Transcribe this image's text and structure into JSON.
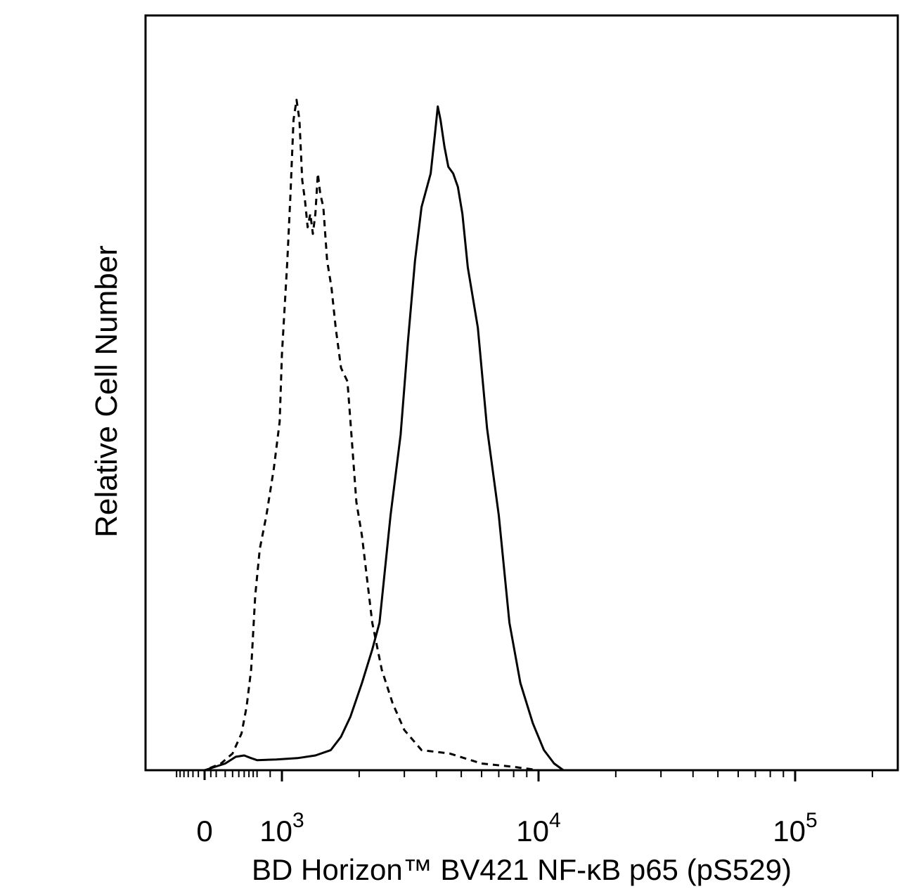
{
  "chart_data": {
    "type": "line",
    "title": "",
    "xlabel": "BD Horizon™ BV421 NF-κB p65 (pS529)",
    "ylabel": "Relative Cell Number",
    "x_scale": "biexponential",
    "xlim": [
      -400,
      230000
    ],
    "ylim": [
      0,
      100
    ],
    "grid": false,
    "legend": "none",
    "x_tick_labels": [
      {
        "value": 0,
        "base": "0",
        "exp": ""
      },
      {
        "value": 1000,
        "base": "10",
        "exp": "3"
      },
      {
        "value": 10000,
        "base": "10",
        "exp": "4"
      },
      {
        "value": 100000,
        "base": "10",
        "exp": "5"
      }
    ],
    "series": [
      {
        "style": "dashed",
        "color": "#000000",
        "points": [
          [
            -300,
            0
          ],
          [
            -100,
            0
          ],
          [
            0,
            0
          ],
          [
            150,
            1
          ],
          [
            300,
            2.5
          ],
          [
            450,
            5.5
          ],
          [
            550,
            9.5
          ],
          [
            650,
            15
          ],
          [
            750,
            26
          ],
          [
            820,
            33
          ],
          [
            870,
            38
          ],
          [
            930,
            45
          ],
          [
            980,
            52
          ],
          [
            1000,
            62
          ],
          [
            1050,
            76
          ],
          [
            1080,
            86
          ],
          [
            1110,
            97
          ],
          [
            1140,
            100
          ],
          [
            1170,
            97
          ],
          [
            1200,
            88
          ],
          [
            1230,
            85
          ],
          [
            1260,
            81
          ],
          [
            1290,
            83
          ],
          [
            1320,
            80
          ],
          [
            1350,
            83
          ],
          [
            1380,
            89
          ],
          [
            1410,
            86
          ],
          [
            1450,
            84
          ],
          [
            1500,
            76
          ],
          [
            1560,
            72
          ],
          [
            1620,
            66
          ],
          [
            1700,
            60
          ],
          [
            1800,
            58
          ],
          [
            1850,
            52
          ],
          [
            1950,
            40
          ],
          [
            2050,
            35
          ],
          [
            2250,
            22
          ],
          [
            2450,
            15
          ],
          [
            2700,
            10
          ],
          [
            3000,
            6
          ],
          [
            3500,
            3
          ],
          [
            4500,
            2.5
          ],
          [
            6000,
            1
          ],
          [
            8000,
            0.5
          ],
          [
            10000,
            0
          ],
          [
            20000,
            0
          ],
          [
            50000,
            0
          ],
          [
            100000,
            0
          ],
          [
            230000,
            0
          ]
        ]
      },
      {
        "style": "solid",
        "color": "#000000",
        "points": [
          [
            -300,
            0
          ],
          [
            -100,
            0
          ],
          [
            0,
            0
          ],
          [
            200,
            1
          ],
          [
            350,
            2
          ],
          [
            500,
            2.2
          ],
          [
            650,
            1.8
          ],
          [
            800,
            1.5
          ],
          [
            950,
            1.6
          ],
          [
            1150,
            1.8
          ],
          [
            1350,
            2.2
          ],
          [
            1550,
            3
          ],
          [
            1700,
            5
          ],
          [
            1850,
            8
          ],
          [
            2050,
            13
          ],
          [
            2250,
            18
          ],
          [
            2400,
            22
          ],
          [
            2650,
            38
          ],
          [
            2900,
            50
          ],
          [
            3100,
            64
          ],
          [
            3300,
            76
          ],
          [
            3500,
            84
          ],
          [
            3800,
            89
          ],
          [
            3950,
            95
          ],
          [
            4050,
            99
          ],
          [
            4150,
            97
          ],
          [
            4300,
            93
          ],
          [
            4450,
            90
          ],
          [
            4650,
            89
          ],
          [
            4850,
            87
          ],
          [
            5050,
            83
          ],
          [
            5300,
            75
          ],
          [
            5800,
            66
          ],
          [
            6300,
            51
          ],
          [
            7000,
            38
          ],
          [
            7700,
            22
          ],
          [
            8500,
            13
          ],
          [
            9500,
            7
          ],
          [
            10500,
            3
          ],
          [
            11500,
            1
          ],
          [
            12500,
            0
          ],
          [
            20000,
            0
          ],
          [
            50000,
            0
          ],
          [
            100000,
            0
          ],
          [
            230000,
            0
          ]
        ]
      }
    ]
  }
}
